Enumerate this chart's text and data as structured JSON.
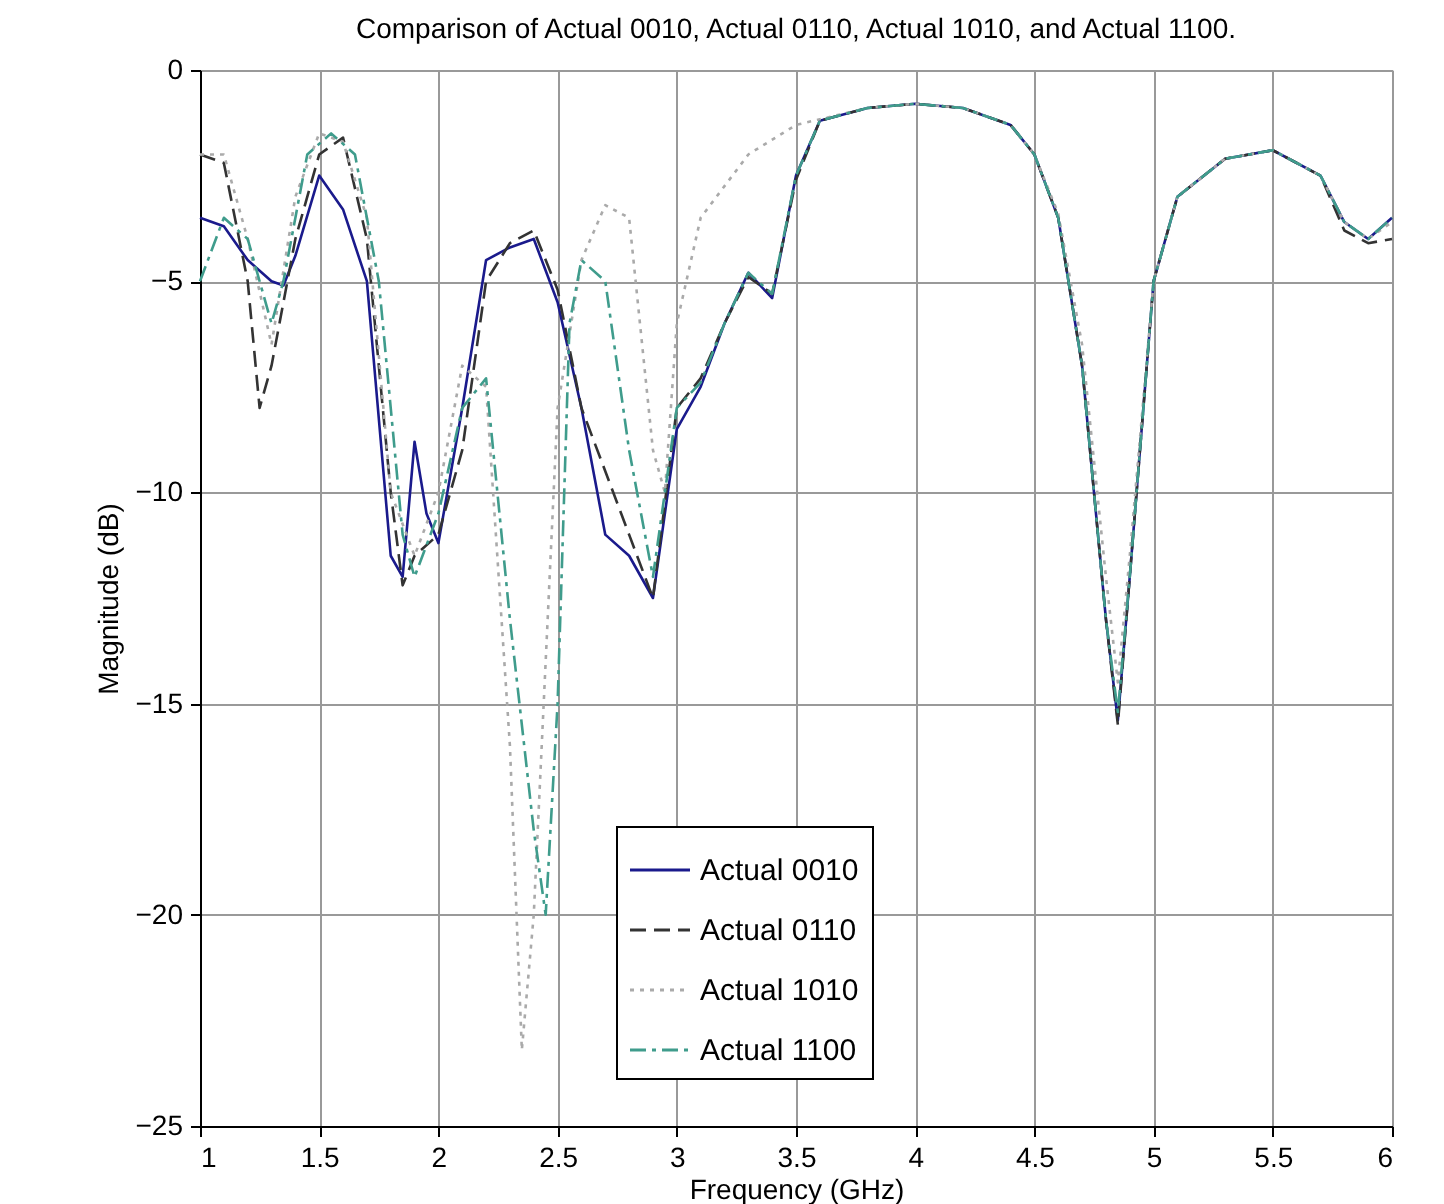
{
  "chart_data": {
    "type": "line",
    "title": "Comparison of Actual 0010, Actual 0110, Actual 1010, and Actual 1100.",
    "xlabel": "Frequency (GHz)",
    "ylabel": "Magnitude (dB)",
    "xlim": [
      1,
      6
    ],
    "ylim": [
      -25,
      0
    ],
    "xticks": [
      1,
      1.5,
      2,
      2.5,
      3,
      3.5,
      4,
      4.5,
      5,
      5.5,
      6
    ],
    "yticks": [
      -25,
      -20,
      -15,
      -10,
      -5,
      0
    ],
    "grid": true,
    "legend": "bottom",
    "marker": "none",
    "series": [
      {
        "name": "Actual 0010",
        "color": "#1a1a8c",
        "line_style": "solid",
        "x": [
          1.0,
          1.1,
          1.2,
          1.3,
          1.35,
          1.4,
          1.5,
          1.6,
          1.7,
          1.8,
          1.85,
          1.9,
          1.95,
          2.0,
          2.1,
          2.2,
          2.3,
          2.4,
          2.5,
          2.6,
          2.7,
          2.8,
          2.9,
          3.0,
          3.1,
          3.2,
          3.3,
          3.4,
          3.5,
          3.6,
          3.8,
          4.0,
          4.2,
          4.4,
          4.5,
          4.6,
          4.7,
          4.8,
          4.85,
          4.9,
          5.0,
          5.1,
          5.3,
          5.5,
          5.7,
          5.8,
          5.9,
          6.0
        ],
        "values": [
          -3.5,
          -3.7,
          -4.5,
          -5.0,
          -5.1,
          -4.4,
          -2.5,
          -3.3,
          -5.0,
          -11.5,
          -12.0,
          -8.8,
          -10.5,
          -11.2,
          -8.0,
          -4.5,
          -4.2,
          -4.0,
          -5.5,
          -8.0,
          -11.0,
          -11.5,
          -12.5,
          -8.5,
          -7.5,
          -6.0,
          -4.8,
          -5.4,
          -2.5,
          -1.2,
          -0.9,
          -0.8,
          -0.9,
          -1.3,
          -2.0,
          -3.5,
          -7.0,
          -13.0,
          -15.4,
          -12.0,
          -5.0,
          -3.0,
          -2.1,
          -1.9,
          -2.5,
          -3.6,
          -4.0,
          -3.5
        ]
      },
      {
        "name": "Actual 0110",
        "color": "#333333",
        "line_style": "dashed",
        "x": [
          1.0,
          1.1,
          1.2,
          1.25,
          1.3,
          1.4,
          1.5,
          1.6,
          1.7,
          1.8,
          1.85,
          1.9,
          2.0,
          2.1,
          2.2,
          2.3,
          2.4,
          2.5,
          2.6,
          2.8,
          2.9,
          3.0,
          3.1,
          3.2,
          3.3,
          3.4,
          3.5,
          3.6,
          3.8,
          4.0,
          4.2,
          4.4,
          4.5,
          4.6,
          4.7,
          4.8,
          4.85,
          4.9,
          5.0,
          5.1,
          5.3,
          5.5,
          5.7,
          5.8,
          5.9,
          6.0
        ],
        "values": [
          -2.0,
          -2.2,
          -5.0,
          -8.0,
          -7.0,
          -4.0,
          -2.0,
          -1.6,
          -4.0,
          -10.0,
          -12.2,
          -11.5,
          -11.0,
          -9.0,
          -5.0,
          -4.1,
          -3.8,
          -5.2,
          -8.0,
          -11.0,
          -12.5,
          -8.0,
          -7.3,
          -6.0,
          -4.9,
          -5.3,
          -2.6,
          -1.2,
          -0.9,
          -0.8,
          -0.9,
          -1.3,
          -2.0,
          -3.5,
          -7.0,
          -13.0,
          -15.5,
          -12.0,
          -5.0,
          -3.0,
          -2.1,
          -1.9,
          -2.5,
          -3.8,
          -4.1,
          -4.0
        ]
      },
      {
        "name": "Actual 1010",
        "color": "#aaaaaa",
        "line_style": "dotted",
        "x": [
          1.0,
          1.1,
          1.2,
          1.3,
          1.4,
          1.5,
          1.6,
          1.7,
          1.8,
          1.9,
          2.0,
          2.1,
          2.2,
          2.3,
          2.35,
          2.4,
          2.5,
          2.6,
          2.7,
          2.8,
          2.9,
          2.95,
          3.0,
          3.1,
          3.3,
          3.5,
          3.8,
          4.0,
          4.2,
          4.4,
          4.5,
          4.6,
          4.7,
          4.8,
          4.85,
          4.9,
          5.0,
          5.1,
          5.3,
          5.5,
          5.7,
          5.8,
          5.9,
          6.0
        ],
        "values": [
          -2.0,
          -2.0,
          -4.0,
          -6.5,
          -3.0,
          -1.5,
          -1.7,
          -3.5,
          -10.0,
          -11.5,
          -10.0,
          -7.0,
          -7.5,
          -16.0,
          -23.2,
          -20.0,
          -8.0,
          -4.5,
          -3.2,
          -3.5,
          -9.0,
          -10.0,
          -6.0,
          -3.5,
          -2.0,
          -1.3,
          -0.9,
          -0.8,
          -0.9,
          -1.3,
          -2.0,
          -3.4,
          -6.5,
          -12.0,
          -14.5,
          -11.5,
          -5.0,
          -3.0,
          -2.1,
          -1.9,
          -2.5,
          -3.6,
          -4.0,
          -3.6
        ]
      },
      {
        "name": "Actual 1100",
        "color": "#3f9c8c",
        "line_style": "dashdot",
        "x": [
          1.0,
          1.1,
          1.2,
          1.3,
          1.35,
          1.45,
          1.55,
          1.65,
          1.75,
          1.85,
          1.9,
          2.0,
          2.1,
          2.2,
          2.3,
          2.4,
          2.45,
          2.5,
          2.55,
          2.6,
          2.7,
          2.8,
          2.9,
          3.0,
          3.1,
          3.2,
          3.3,
          3.4,
          3.5,
          3.6,
          3.8,
          4.0,
          4.2,
          4.4,
          4.5,
          4.6,
          4.7,
          4.8,
          4.85,
          4.9,
          5.0,
          5.1,
          5.3,
          5.5,
          5.7,
          5.8,
          5.9,
          6.0
        ],
        "values": [
          -5.0,
          -3.5,
          -4.0,
          -6.0,
          -5.0,
          -2.0,
          -1.5,
          -2.0,
          -5.0,
          -11.0,
          -12.0,
          -10.5,
          -8.0,
          -7.3,
          -13.0,
          -18.0,
          -20.0,
          -15.0,
          -6.0,
          -4.5,
          -5.0,
          -9.0,
          -12.0,
          -8.0,
          -7.4,
          -6.0,
          -4.8,
          -5.3,
          -2.5,
          -1.2,
          -0.9,
          -0.8,
          -0.9,
          -1.3,
          -2.0,
          -3.5,
          -7.0,
          -13.0,
          -15.2,
          -12.0,
          -5.0,
          -3.0,
          -2.1,
          -1.9,
          -2.5,
          -3.6,
          -4.0,
          -3.5
        ]
      }
    ]
  }
}
